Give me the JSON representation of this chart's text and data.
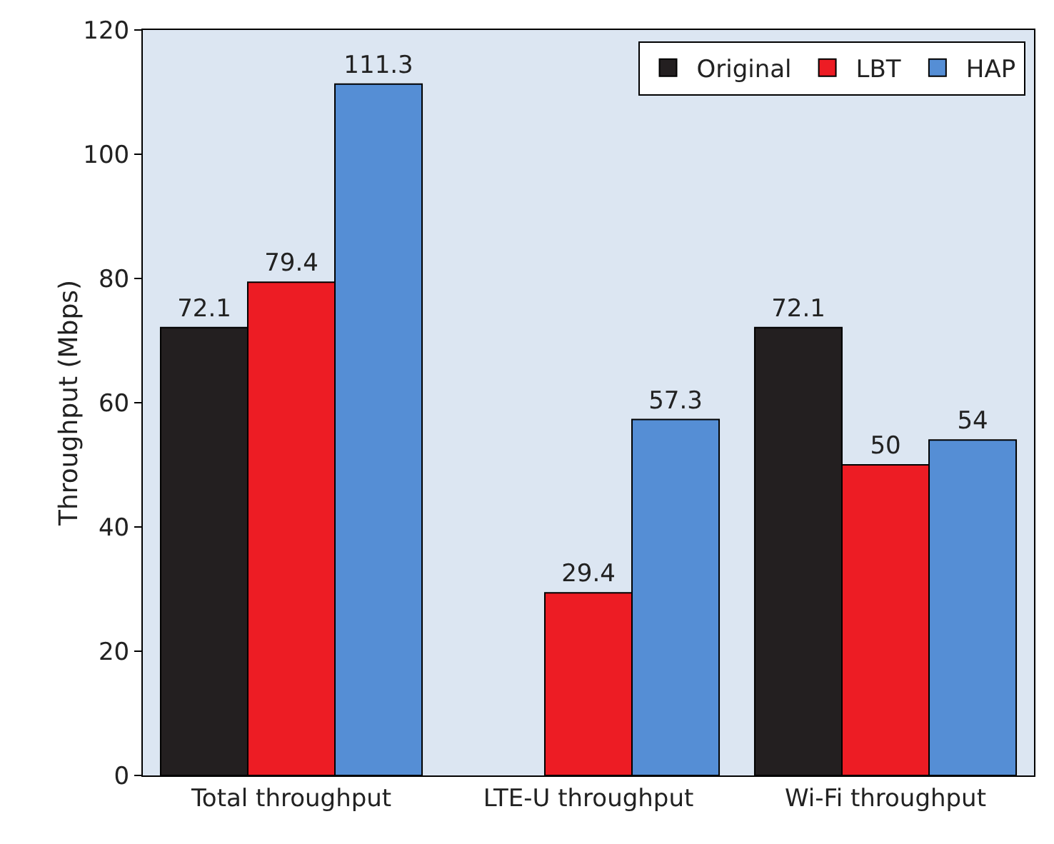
{
  "chart_data": {
    "type": "bar",
    "ylabel": "Throughput (Mbps)",
    "categories": [
      "Total throughput",
      "LTE-U throughput",
      "Wi-Fi throughput"
    ],
    "series": [
      {
        "name": "Original",
        "color": "#231f20",
        "values": [
          72.1,
          null,
          72.1
        ]
      },
      {
        "name": "LBT",
        "color": "#ed1c24",
        "values": [
          79.4,
          29.4,
          50
        ]
      },
      {
        "name": "HAP",
        "color": "#558ed5",
        "values": [
          111.3,
          57.3,
          54
        ]
      }
    ],
    "ylim": [
      0,
      120
    ],
    "yticks": [
      0,
      20,
      40,
      60,
      80,
      100,
      120
    ],
    "grid": false,
    "legend": "top right",
    "data_labels": true
  }
}
